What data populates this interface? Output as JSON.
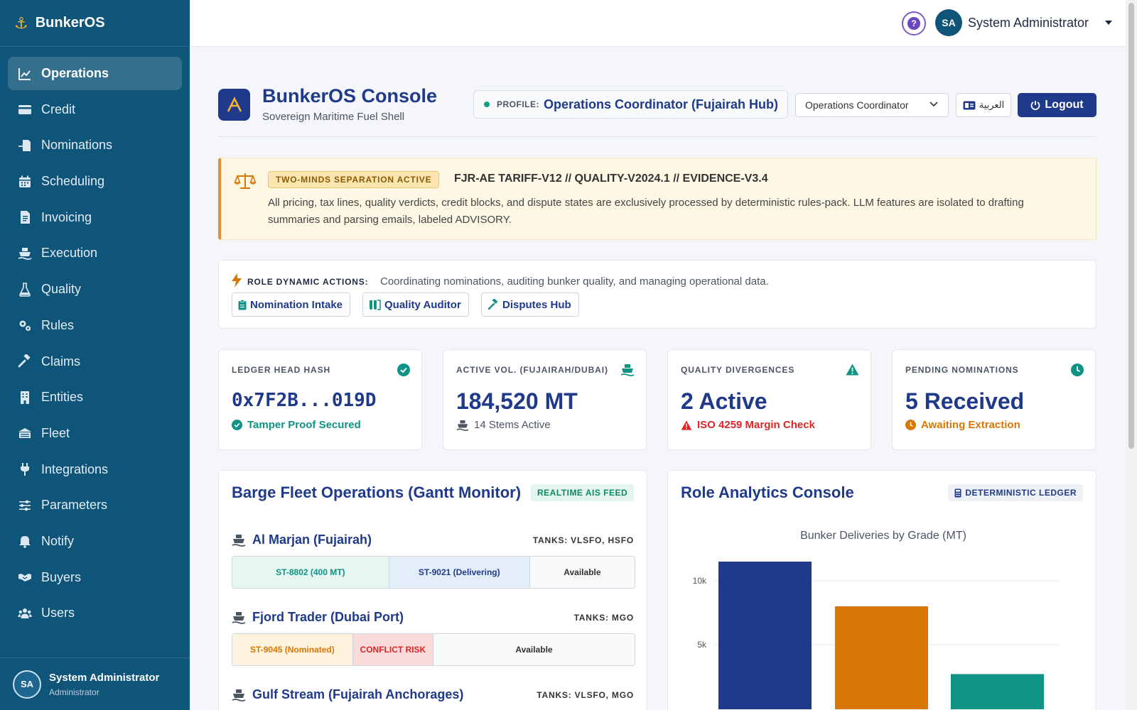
{
  "app": {
    "name": "BunkerOS"
  },
  "sidebar": {
    "items": [
      {
        "label": "Operations",
        "icon": "chart-line-icon",
        "active": true
      },
      {
        "label": "Credit",
        "icon": "credit-card-icon"
      },
      {
        "label": "Nominations",
        "icon": "file-import-icon"
      },
      {
        "label": "Scheduling",
        "icon": "calendar-icon"
      },
      {
        "label": "Invoicing",
        "icon": "invoice-icon"
      },
      {
        "label": "Execution",
        "icon": "ship-icon"
      },
      {
        "label": "Quality",
        "icon": "flask-icon"
      },
      {
        "label": "Rules",
        "icon": "gears-icon"
      },
      {
        "label": "Claims",
        "icon": "gavel-icon"
      },
      {
        "label": "Entities",
        "icon": "building-icon"
      },
      {
        "label": "Fleet",
        "icon": "fleet-icon"
      },
      {
        "label": "Integrations",
        "icon": "plug-icon"
      },
      {
        "label": "Parameters",
        "icon": "sliders-icon"
      },
      {
        "label": "Notify",
        "icon": "bell-icon"
      },
      {
        "label": "Buyers",
        "icon": "handshake-icon"
      },
      {
        "label": "Users",
        "icon": "users-icon"
      }
    ],
    "user": {
      "initials": "SA",
      "name": "System Administrator",
      "role": "Administrator"
    }
  },
  "topbar": {
    "help": "?",
    "initials": "SA",
    "user_name": "System Administrator"
  },
  "header": {
    "title": "BunkerOS Console",
    "subtitle": "Sovereign Maritime Fuel Shell",
    "profile_label": "PROFILE:",
    "profile_value": "Operations Coordinator (Fujairah Hub)",
    "role_select": "Operations Coordinator",
    "language": "العربية",
    "logout": "Logout"
  },
  "banner": {
    "pill": "TWO-MINDS SEPARATION ACTIVE",
    "code": "FJR-AE TARIFF-V12 // QUALITY-V2024.1 // EVIDENCE-V3.4",
    "text": "All pricing, tax lines, quality verdicts, credit blocks, and dispute states are exclusively processed by deterministic rules-pack. LLM features are isolated to drafting summaries and parsing emails, labeled ADVISORY."
  },
  "role_actions": {
    "label": "ROLE DYNAMIC ACTIONS:",
    "description": "Coordinating nominations, auditing bunker quality, and managing operational data.",
    "buttons": [
      "Nomination Intake",
      "Quality Auditor",
      "Disputes Hub"
    ]
  },
  "stats": [
    {
      "key": "LEDGER HEAD HASH",
      "value": "0x7F2B...019D",
      "sub": "Tamper Proof Secured"
    },
    {
      "key": "ACTIVE VOL. (FUJAIRAH/DUBAI)",
      "value": "184,520 MT",
      "sub": "14 Stems Active"
    },
    {
      "key": "QUALITY DIVERGENCES",
      "value": "2 Active",
      "sub": "ISO 4259 Margin Check"
    },
    {
      "key": "PENDING NOMINATIONS",
      "value": "5 Received",
      "sub": "Awaiting Extraction"
    }
  ],
  "gantt": {
    "title": "Barge Fleet Operations (Gantt Monitor)",
    "pill": "REALTIME AIS FEED",
    "barges": [
      {
        "name": "Al Marjan (Fujairah)",
        "tanks": "TANKS: VLSFO, HSFO",
        "segments": [
          {
            "label": "ST-8802 (400 MT)",
            "width": 0.39
          },
          {
            "label": "ST-9021 (Delivering)",
            "width": 0.35
          },
          {
            "label": "Available",
            "width": 0.26
          }
        ]
      },
      {
        "name": "Fjord Trader (Dubai Port)",
        "tanks": "TANKS: MGO",
        "segments": [
          {
            "label": "ST-9045 (Nominated)",
            "width": 0.3
          },
          {
            "label": "CONFLICT RISK",
            "width": 0.2
          },
          {
            "label": "Available",
            "width": 0.5
          }
        ]
      },
      {
        "name": "Gulf Stream (Fujairah Anchorages)",
        "tanks": "TANKS: VLSFO, MGO",
        "segments": []
      }
    ]
  },
  "analytics": {
    "title": "Role Analytics Console",
    "pill": "DETERMINISTIC LEDGER"
  },
  "colors": {
    "sidebar": "#0f5479",
    "primary": "#1f3a8a",
    "accent_orange": "#d97706",
    "accent_teal": "#0e9384",
    "danger": "#dc2626",
    "success": "#10a37f"
  },
  "chart_data": {
    "type": "bar",
    "title": "Bunker Deliveries by Grade (MT)",
    "categories": [
      "",
      "",
      ""
    ],
    "values": [
      11500,
      8000,
      2700
    ],
    "colors": [
      "#1e3a8a",
      "#d97706",
      "#0e9384"
    ],
    "yticks": [
      "5k",
      "10k"
    ],
    "ytick_values": [
      5000,
      10000
    ],
    "ylim": [
      0,
      13000
    ],
    "grid": true
  }
}
